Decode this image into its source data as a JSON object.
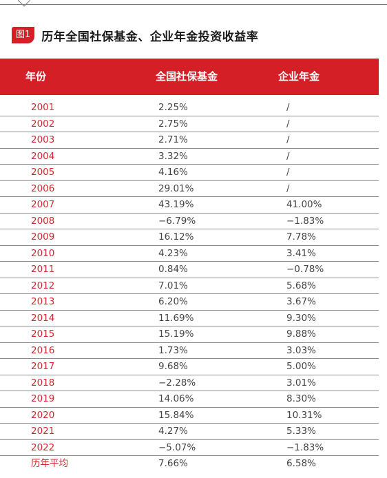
{
  "figure": {
    "badge": "图1",
    "title": "历年全国社保基金、企业年金投资收益率"
  },
  "chart_data": {
    "type": "table",
    "columns": [
      "年份",
      "全国社保基金",
      "企业年金"
    ],
    "rows": [
      {
        "year": "2001",
        "social_security": "2.25%",
        "enterprise_annuity": "/"
      },
      {
        "year": "2002",
        "social_security": "2.75%",
        "enterprise_annuity": "/"
      },
      {
        "year": "2003",
        "social_security": "2.71%",
        "enterprise_annuity": "/"
      },
      {
        "year": "2004",
        "social_security": "3.32%",
        "enterprise_annuity": "/"
      },
      {
        "year": "2005",
        "social_security": "4.16%",
        "enterprise_annuity": "/"
      },
      {
        "year": "2006",
        "social_security": "29.01%",
        "enterprise_annuity": "/"
      },
      {
        "year": "2007",
        "social_security": "43.19%",
        "enterprise_annuity": "41.00%"
      },
      {
        "year": "2008",
        "social_security": "−6.79%",
        "enterprise_annuity": "−1.83%"
      },
      {
        "year": "2009",
        "social_security": "16.12%",
        "enterprise_annuity": "7.78%"
      },
      {
        "year": "2010",
        "social_security": "4.23%",
        "enterprise_annuity": "3.41%"
      },
      {
        "year": "2011",
        "social_security": "0.84%",
        "enterprise_annuity": "−0.78%"
      },
      {
        "year": "2012",
        "social_security": "7.01%",
        "enterprise_annuity": "5.68%"
      },
      {
        "year": "2013",
        "social_security": "6.20%",
        "enterprise_annuity": "3.67%"
      },
      {
        "year": "2014",
        "social_security": "11.69%",
        "enterprise_annuity": "9.30%"
      },
      {
        "year": "2015",
        "social_security": "15.19%",
        "enterprise_annuity": "9.88%"
      },
      {
        "year": "2016",
        "social_security": "1.73%",
        "enterprise_annuity": "3.03%"
      },
      {
        "year": "2017",
        "social_security": "9.68%",
        "enterprise_annuity": "5.00%"
      },
      {
        "year": "2018",
        "social_security": "−2.28%",
        "enterprise_annuity": "3.01%"
      },
      {
        "year": "2019",
        "social_security": "14.06%",
        "enterprise_annuity": "8.30%"
      },
      {
        "year": "2020",
        "social_security": "15.84%",
        "enterprise_annuity": "10.31%"
      },
      {
        "year": "2021",
        "social_security": "4.27%",
        "enterprise_annuity": "5.33%"
      },
      {
        "year": "2022",
        "social_security": "−5.07%",
        "enterprise_annuity": "−1.83%"
      },
      {
        "year": "历年平均",
        "social_security": "7.66%",
        "enterprise_annuity": "6.58%"
      }
    ]
  },
  "colors": {
    "accent": "#d51f26",
    "year_text": "#d0282e",
    "rule": "#8c8c8c",
    "value_text": "#444444"
  }
}
